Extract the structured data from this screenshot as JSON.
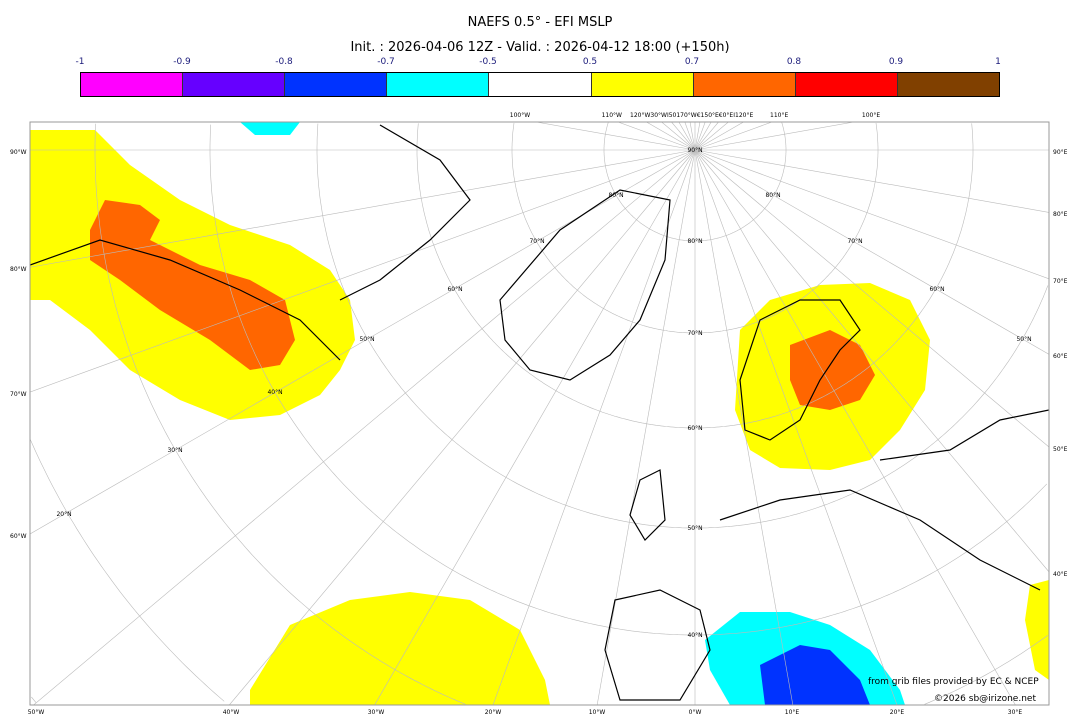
{
  "title": "NAEFS 0.5° - EFI MSLP",
  "subtitle": "Init. : 2026-04-06 12Z - Valid. : 2026-04-12 18:00 (+150h)",
  "colorbar": {
    "ticks": [
      "-1",
      "-0.9",
      "-0.8",
      "-0.7",
      "-0.5",
      "0.5",
      "0.7",
      "0.8",
      "0.9",
      "1"
    ],
    "colors": [
      "#ff00ff",
      "#6600ff",
      "#0033ff",
      "#00ffff",
      "#ffffff",
      "#ffff00",
      "#ff6600",
      "#ff0000",
      "#804000"
    ]
  },
  "map": {
    "projection": "polar stereographic",
    "left_labels": [
      "90°W",
      "80°W",
      "70°W",
      "60°W"
    ],
    "right_labels": [
      "90°E",
      "80°E",
      "70°E",
      "60°E",
      "50°E",
      "40°E"
    ],
    "bottom_labels": [
      "50°W",
      "40°W",
      "30°W",
      "20°W",
      "10°W",
      "0°W",
      "10°E",
      "20°E",
      "30°E"
    ],
    "top_labels": [
      "100°W",
      "110°W",
      "120°W30°WI50170°W€150°E€0°EI120°E",
      "110°E",
      "100°E"
    ],
    "lat_labels_left": [
      "90°N",
      "80°N",
      "70°N",
      "60°N",
      "50°N",
      "40°N",
      "30°N",
      "20°N"
    ],
    "lat_labels_right": [
      "80°N",
      "70°N",
      "60°N",
      "50°N"
    ],
    "lat_labels_center": [
      "80°N",
      "70°N",
      "60°N",
      "50°N",
      "40°N"
    ]
  },
  "credits": {
    "source": "from grib files provided by EC & NCEP",
    "copyright": "©2026 sb@irizone.net"
  }
}
